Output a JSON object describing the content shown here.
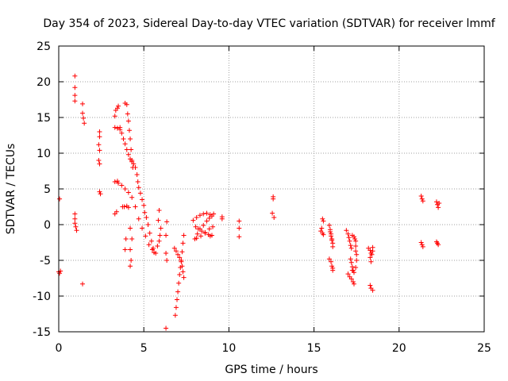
{
  "chart_data": {
    "type": "scatter",
    "title": "Day 354 of 2023, Sidereal Day-to-day VTEC variation (SDTVAR) for receiver lmmf",
    "xlabel": "GPS time / hours",
    "ylabel": "SDTVAR / TECUs",
    "xlim": [
      0,
      25
    ],
    "ylim": [
      -15,
      25
    ],
    "x_ticks": [
      0,
      5,
      10,
      15,
      20,
      25
    ],
    "x_tick_labels": [
      "0",
      "5",
      "10",
      "15",
      "20",
      "25"
    ],
    "y_ticks": [
      -15,
      -10,
      -5,
      0,
      5,
      10,
      15,
      20,
      25
    ],
    "y_tick_labels": [
      "-15",
      "-10",
      "-5",
      "0",
      "5",
      "10",
      "15",
      "20",
      "25"
    ],
    "grid": true,
    "marker": "+",
    "color": "#ff0000",
    "series": [
      {
        "name": "SDTVAR",
        "points": [
          [
            0.0,
            -6.6
          ],
          [
            0.05,
            -6.8
          ],
          [
            0.1,
            -6.5
          ],
          [
            0.05,
            3.6
          ],
          [
            0.95,
            20.8
          ],
          [
            0.95,
            19.2
          ],
          [
            0.95,
            18.1
          ],
          [
            0.95,
            17.3
          ],
          [
            0.95,
            1.5
          ],
          [
            0.95,
            0.8
          ],
          [
            0.95,
            0.2
          ],
          [
            1.0,
            -0.3
          ],
          [
            1.05,
            -0.8
          ],
          [
            1.4,
            16.9
          ],
          [
            1.4,
            15.6
          ],
          [
            1.45,
            14.9
          ],
          [
            1.5,
            14.2
          ],
          [
            1.4,
            -8.3
          ],
          [
            2.4,
            13.0
          ],
          [
            2.4,
            12.3
          ],
          [
            2.35,
            11.2
          ],
          [
            2.4,
            10.4
          ],
          [
            2.35,
            9.0
          ],
          [
            2.4,
            8.5
          ],
          [
            2.4,
            4.6
          ],
          [
            2.45,
            4.3
          ],
          [
            3.3,
            15.2
          ],
          [
            3.35,
            16.0
          ],
          [
            3.45,
            16.3
          ],
          [
            3.5,
            16.6
          ],
          [
            3.3,
            13.6
          ],
          [
            3.45,
            13.5
          ],
          [
            3.6,
            13.6
          ],
          [
            3.3,
            6.0
          ],
          [
            3.45,
            6.1
          ],
          [
            3.3,
            1.5
          ],
          [
            3.4,
            1.8
          ],
          [
            3.75,
            2.5
          ],
          [
            3.85,
            2.5
          ],
          [
            4.0,
            2.6
          ],
          [
            4.1,
            2.4
          ],
          [
            3.9,
            17.0
          ],
          [
            4.0,
            16.8
          ],
          [
            4.05,
            15.5
          ],
          [
            4.1,
            14.5
          ],
          [
            4.15,
            13.2
          ],
          [
            4.2,
            12.0
          ],
          [
            4.25,
            10.5
          ],
          [
            4.3,
            9.0
          ],
          [
            4.35,
            8.0
          ],
          [
            3.6,
            13.3
          ],
          [
            3.7,
            12.8
          ],
          [
            3.8,
            12.0
          ],
          [
            3.9,
            11.3
          ],
          [
            4.0,
            10.5
          ],
          [
            4.1,
            9.8
          ],
          [
            4.2,
            9.2
          ],
          [
            4.3,
            8.8
          ],
          [
            4.4,
            8.5
          ],
          [
            4.5,
            8.0
          ],
          [
            4.6,
            7.0
          ],
          [
            4.65,
            6.0
          ],
          [
            4.7,
            5.2
          ],
          [
            4.8,
            4.4
          ],
          [
            4.9,
            3.5
          ],
          [
            5.0,
            2.7
          ],
          [
            5.05,
            1.7
          ],
          [
            5.15,
            1.0
          ],
          [
            5.25,
            0.0
          ],
          [
            5.35,
            -1.2
          ],
          [
            5.45,
            -2.3
          ],
          [
            5.55,
            -3.3
          ],
          [
            5.6,
            -3.9
          ],
          [
            3.5,
            5.8
          ],
          [
            3.7,
            5.5
          ],
          [
            3.9,
            5.0
          ],
          [
            4.1,
            4.5
          ],
          [
            4.3,
            3.8
          ],
          [
            4.5,
            2.5
          ],
          [
            4.7,
            0.8
          ],
          [
            4.9,
            -0.5
          ],
          [
            5.1,
            -1.6
          ],
          [
            5.3,
            -2.8
          ],
          [
            5.5,
            -3.5
          ],
          [
            5.7,
            -4.0
          ],
          [
            4.2,
            -0.5
          ],
          [
            4.3,
            -2.0
          ],
          [
            4.2,
            -3.5
          ],
          [
            4.25,
            -5.0
          ],
          [
            4.2,
            -5.8
          ],
          [
            3.95,
            -2.0
          ],
          [
            3.9,
            -3.5
          ],
          [
            5.8,
            -3.0
          ],
          [
            5.9,
            -2.3
          ],
          [
            5.95,
            -1.5
          ],
          [
            6.0,
            -0.5
          ],
          [
            5.85,
            0.6
          ],
          [
            5.9,
            2.0
          ],
          [
            6.3,
            -4.0
          ],
          [
            6.35,
            -5.0
          ],
          [
            6.3,
            -1.5
          ],
          [
            6.35,
            0.4
          ],
          [
            6.3,
            -14.5
          ],
          [
            6.85,
            -12.7
          ],
          [
            6.9,
            -11.6
          ],
          [
            6.95,
            -10.5
          ],
          [
            7.0,
            -9.4
          ],
          [
            7.05,
            -8.2
          ],
          [
            7.1,
            -7.0
          ],
          [
            7.15,
            -6.0
          ],
          [
            7.2,
            -5.0
          ],
          [
            7.25,
            -3.8
          ],
          [
            7.3,
            -2.6
          ],
          [
            7.35,
            -1.5
          ],
          [
            6.8,
            -3.3
          ],
          [
            6.9,
            -3.7
          ],
          [
            7.0,
            -4.2
          ],
          [
            7.1,
            -4.6
          ],
          [
            7.2,
            -5.2
          ],
          [
            7.25,
            -5.8
          ],
          [
            7.3,
            -6.6
          ],
          [
            7.35,
            -7.4
          ],
          [
            8.0,
            -2.0
          ],
          [
            8.15,
            -1.3
          ],
          [
            8.3,
            -0.6
          ],
          [
            8.5,
            -0.1
          ],
          [
            8.7,
            0.5
          ],
          [
            8.85,
            0.9
          ],
          [
            9.0,
            1.2
          ],
          [
            9.1,
            1.5
          ],
          [
            8.05,
            -0.3
          ],
          [
            8.2,
            -0.6
          ],
          [
            8.4,
            -0.9
          ],
          [
            8.6,
            -1.2
          ],
          [
            8.8,
            -1.4
          ],
          [
            8.9,
            -1.6
          ],
          [
            9.0,
            -1.5
          ],
          [
            7.9,
            0.6
          ],
          [
            8.1,
            1.0
          ],
          [
            8.3,
            1.3
          ],
          [
            8.5,
            1.5
          ],
          [
            8.7,
            1.6
          ],
          [
            8.9,
            1.4
          ],
          [
            8.1,
            -1.9
          ],
          [
            8.35,
            -1.6
          ],
          [
            8.6,
            -1.1
          ],
          [
            8.85,
            -0.6
          ],
          [
            9.05,
            -0.3
          ],
          [
            9.6,
            1.1
          ],
          [
            9.6,
            0.8
          ],
          [
            10.6,
            0.5
          ],
          [
            10.6,
            -0.5
          ],
          [
            10.6,
            -1.7
          ],
          [
            12.6,
            3.9
          ],
          [
            12.6,
            3.6
          ],
          [
            12.55,
            1.6
          ],
          [
            12.65,
            1.0
          ],
          [
            15.4,
            -0.9
          ],
          [
            15.5,
            -1.2
          ],
          [
            15.55,
            -1.4
          ],
          [
            15.45,
            -0.5
          ],
          [
            15.5,
            0.8
          ],
          [
            15.55,
            0.5
          ],
          [
            15.9,
            -0.1
          ],
          [
            15.95,
            -0.7
          ],
          [
            16.0,
            -1.3
          ],
          [
            16.05,
            -2.0
          ],
          [
            16.1,
            -2.6
          ],
          [
            16.1,
            -3.1
          ],
          [
            15.95,
            -1.0
          ],
          [
            16.0,
            -1.6
          ],
          [
            16.05,
            -2.2
          ],
          [
            15.9,
            -4.8
          ],
          [
            16.0,
            -5.2
          ],
          [
            16.05,
            -5.8
          ],
          [
            16.1,
            -6.1
          ],
          [
            16.1,
            -6.4
          ],
          [
            16.9,
            -0.8
          ],
          [
            17.0,
            -1.3
          ],
          [
            17.05,
            -1.8
          ],
          [
            17.1,
            -2.3
          ],
          [
            17.15,
            -2.9
          ],
          [
            17.2,
            -3.3
          ],
          [
            17.15,
            -4.8
          ],
          [
            17.2,
            -5.3
          ],
          [
            17.25,
            -5.9
          ],
          [
            17.3,
            -6.4
          ],
          [
            17.0,
            -6.9
          ],
          [
            17.1,
            -7.3
          ],
          [
            17.2,
            -7.6
          ],
          [
            17.3,
            -8.0
          ],
          [
            17.35,
            -8.3
          ],
          [
            17.25,
            -1.5
          ],
          [
            17.35,
            -1.7
          ],
          [
            17.4,
            -2.0
          ],
          [
            17.45,
            -2.3
          ],
          [
            17.45,
            -3.0
          ],
          [
            17.45,
            -3.7
          ],
          [
            17.5,
            -4.2
          ],
          [
            17.5,
            -5.0
          ],
          [
            17.45,
            -6.0
          ],
          [
            17.25,
            -6.4
          ],
          [
            17.35,
            -6.7
          ],
          [
            18.2,
            -3.3
          ],
          [
            18.3,
            -3.6
          ],
          [
            18.35,
            -4.0
          ],
          [
            18.4,
            -4.2
          ],
          [
            18.3,
            -4.6
          ],
          [
            18.35,
            -5.2
          ],
          [
            18.45,
            -3.2
          ],
          [
            18.45,
            -3.7
          ],
          [
            18.3,
            -8.5
          ],
          [
            18.35,
            -8.9
          ],
          [
            18.45,
            -9.2
          ],
          [
            21.3,
            4.0
          ],
          [
            21.35,
            3.6
          ],
          [
            21.4,
            3.3
          ],
          [
            21.3,
            -2.5
          ],
          [
            21.35,
            -2.8
          ],
          [
            21.4,
            -3.1
          ],
          [
            22.2,
            3.2
          ],
          [
            22.25,
            2.8
          ],
          [
            22.3,
            2.4
          ],
          [
            22.35,
            3.0
          ],
          [
            22.2,
            -2.4
          ],
          [
            22.25,
            -2.6
          ],
          [
            22.3,
            -2.8
          ]
        ]
      }
    ]
  }
}
